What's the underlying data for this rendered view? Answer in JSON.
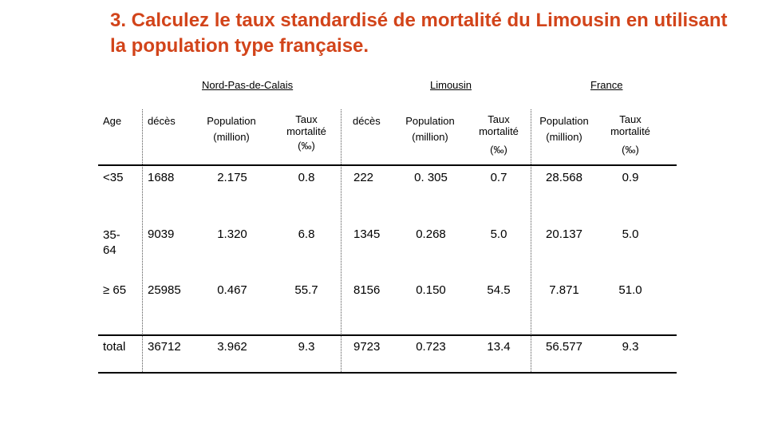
{
  "title": "3. Calculez le taux standardisé de mortalité du Limousin en utilisant la population type française.",
  "regions": [
    "Nord-Pas-de-Calais",
    "Limousin",
    "France"
  ],
  "headers": {
    "age": "Age",
    "deces_1": "décès",
    "pop_1_a": "Population",
    "pop_1_b": "(million)",
    "taux_1_a": "Taux",
    "taux_1_b": "mortalité",
    "taux_1_c": "(‰)",
    "deces_2": "décès",
    "pop_2_a": "Population",
    "pop_2_b": "(million)",
    "taux_2_a": "Taux",
    "taux_2_b": "mortalité",
    "taux_2_c": "(‰)",
    "pop_3_a": "Population",
    "pop_3_b": "(million)",
    "taux_3_a": "Taux",
    "taux_3_b": "mortalité",
    "taux_3_c": "(‰)"
  },
  "rows": [
    {
      "age_a": "<35",
      "age_b": "",
      "c1": "1688",
      "c2": "2.175",
      "c3": "0.8",
      "c4": "222",
      "c5": "0. 305",
      "c6": "0.7",
      "c7": "28.568",
      "c8": "0.9"
    },
    {
      "age_a": "35-",
      "age_b": "64",
      "c1": "9039",
      "c2": "1.320",
      "c3": "6.8",
      "c4": "1345",
      "c5": "0.268",
      "c6": "5.0",
      "c7": "20.137",
      "c8": "5.0"
    },
    {
      "age_a": "≥ 65",
      "age_b": "",
      "c1": "25985",
      "c2": "0.467",
      "c3": "55.7",
      "c4": "8156",
      "c5": "0.150",
      "c6": "54.5",
      "c7": "7.871",
      "c8": "51.0"
    },
    {
      "age_a": "total",
      "age_b": "",
      "c1": "36712",
      "c2": "3.962",
      "c3": "9.3",
      "c4": "9723",
      "c5": "0.723",
      "c6": "13.4",
      "c7": "56.577",
      "c8": "9.3"
    }
  ]
}
